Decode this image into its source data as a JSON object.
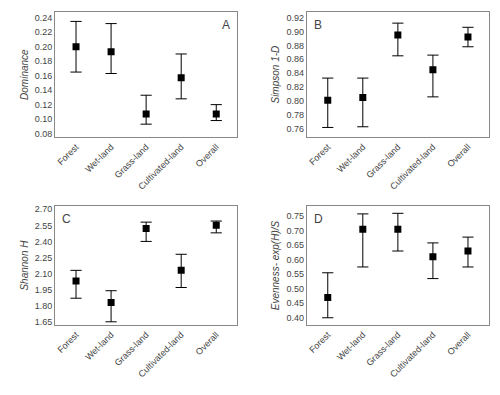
{
  "chart_data": [
    {
      "type": "scatter",
      "annotations": [
        "A"
      ],
      "ylabel": "Dominance",
      "categories": [
        "Forest",
        "Wet-land",
        "Grass-land",
        "Cultivated-land",
        "Overall"
      ],
      "values": [
        0.2,
        0.193,
        0.107,
        0.157,
        0.107
      ],
      "lower": [
        0.165,
        0.163,
        0.093,
        0.128,
        0.098
      ],
      "upper": [
        0.235,
        0.232,
        0.133,
        0.19,
        0.12
      ],
      "ylim": [
        0.075,
        0.248
      ],
      "yticks": [
        0.08,
        {
          "value": 0.1,
          "label": "0.10"
        },
        0.12,
        0.14,
        0.16,
        0.18,
        {
          "value": 0.2,
          "label": "0.20"
        },
        0.22,
        0.24
      ],
      "grid": false,
      "color": "black",
      "marker": "square"
    },
    {
      "type": "scatter",
      "annotations": [
        "B"
      ],
      "ylabel": "Simpson 1-D",
      "categories": [
        "Forest",
        "Wet-land",
        "Grass-land",
        "Cultivated-land",
        "Overall"
      ],
      "values": [
        0.801,
        0.805,
        0.895,
        0.845,
        0.892
      ],
      "lower": [
        0.762,
        0.763,
        0.865,
        0.806,
        0.878
      ],
      "upper": [
        0.833,
        0.833,
        0.912,
        0.866,
        0.906
      ],
      "ylim": [
        0.748,
        0.928
      ],
      "yticks": [
        0.76,
        0.78,
        {
          "value": 0.8,
          "label": "0.80"
        },
        0.82,
        0.84,
        0.86,
        0.88,
        {
          "value": 0.9,
          "label": "0.90"
        },
        0.92
      ],
      "grid": false,
      "color": "black",
      "marker": "square"
    },
    {
      "type": "scatter",
      "annotations": [
        "C"
      ],
      "ylabel": "Shannon H",
      "categories": [
        "Forest",
        "Wet-land",
        "Grass-land",
        "Cultivated-land",
        "Overall"
      ],
      "values": [
        2.03,
        1.83,
        2.52,
        2.13,
        2.55
      ],
      "lower": [
        1.87,
        1.65,
        2.4,
        1.97,
        2.48
      ],
      "upper": [
        2.13,
        1.94,
        2.58,
        2.28,
        2.59
      ],
      "ylim": [
        1.62,
        2.73
      ],
      "yticks": [
        1.65,
        {
          "value": 1.8,
          "label": "1.80"
        },
        1.95,
        {
          "value": 2.1,
          "label": "2.10"
        },
        2.25,
        {
          "value": 2.4,
          "label": "2.40"
        },
        2.55,
        {
          "value": 2.7,
          "label": "2.70"
        }
      ],
      "grid": false,
      "color": "black",
      "marker": "square"
    },
    {
      "type": "scatter",
      "annotations": [
        "D"
      ],
      "ylabel": "Evenness- exp(H)/S",
      "categories": [
        "Forest",
        "Wet-land",
        "Grass-land",
        "Cultivated-land",
        "Overall"
      ],
      "values": [
        0.47,
        0.705,
        0.705,
        0.61,
        0.63
      ],
      "lower": [
        0.4,
        0.575,
        0.63,
        0.535,
        0.575
      ],
      "upper": [
        0.555,
        0.758,
        0.76,
        0.658,
        0.678
      ],
      "ylim": [
        0.375,
        0.785
      ],
      "yticks": [
        {
          "value": 0.4,
          "label": "0.40"
        },
        0.45,
        {
          "value": 0.5,
          "label": "0.50"
        },
        0.55,
        {
          "value": 0.6,
          "label": "0.60"
        },
        0.65,
        {
          "value": 0.7,
          "label": "0.70"
        },
        0.75
      ],
      "grid": false,
      "color": "black",
      "marker": "square"
    }
  ]
}
